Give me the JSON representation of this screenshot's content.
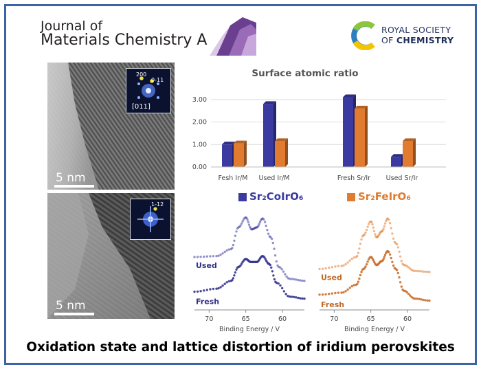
{
  "journal": {
    "line1": "Journal of",
    "line2": "Materials Chemistry A"
  },
  "publisher": {
    "line1": "ROYAL SOCIETY",
    "line2_prefix": "OF ",
    "line2_strong": "CHEMISTRY"
  },
  "tem_panels": [
    {
      "scale_label": "5 nm",
      "fft_labels": [
        "200",
        "0-11",
        "[011]"
      ]
    },
    {
      "scale_label": "5 nm",
      "fft_labels": [
        "1-12"
      ]
    }
  ],
  "legend": [
    {
      "label": "Sr₂CoIrO₆",
      "color": "#3a3aa0"
    },
    {
      "label": "Sr₂FeIrO₆",
      "color": "#e07b30"
    }
  ],
  "chart_data": [
    {
      "type": "bar",
      "title": "Surface atomic ratio",
      "categories": [
        "Fesh Ir/M",
        "Used Ir/M",
        "Fresh Sr/Ir",
        "Used Sr/Ir"
      ],
      "series": [
        {
          "name": "Sr₂CoIrO₆",
          "values": [
            1.0,
            2.8,
            3.1,
            0.45
          ]
        },
        {
          "name": "Sr₂FeIrO₆",
          "values": [
            1.05,
            1.15,
            2.6,
            1.15
          ]
        }
      ],
      "yticks": [
        "0.00",
        "1.00",
        "2.00",
        "3.00"
      ],
      "ylim": [
        0,
        3.3
      ]
    },
    {
      "type": "line",
      "series_name": "Sr₂CoIrO₆",
      "color": "#3a3aa0",
      "xlabel": "Binding Energy / V",
      "xticks": [
        70,
        65,
        60
      ],
      "xlim": [
        72,
        57
      ],
      "ylim": [
        0,
        1
      ],
      "curves": [
        {
          "label": "Used",
          "points": [
            [
              72,
              0.52
            ],
            [
              69,
              0.53
            ],
            [
              67,
              0.6
            ],
            [
              66,
              0.82
            ],
            [
              65,
              0.92
            ],
            [
              64.2,
              0.8
            ],
            [
              63.5,
              0.82
            ],
            [
              62.7,
              0.91
            ],
            [
              61.6,
              0.72
            ],
            [
              60.5,
              0.42
            ],
            [
              59,
              0.3
            ],
            [
              57,
              0.28
            ]
          ]
        },
        {
          "label": "Fresh",
          "points": [
            [
              72,
              0.17
            ],
            [
              69,
              0.2
            ],
            [
              67,
              0.28
            ],
            [
              66,
              0.42
            ],
            [
              65,
              0.5
            ],
            [
              64.3,
              0.47
            ],
            [
              63.5,
              0.47
            ],
            [
              62.7,
              0.53
            ],
            [
              61.8,
              0.45
            ],
            [
              60.8,
              0.26
            ],
            [
              59,
              0.12
            ],
            [
              57,
              0.1
            ]
          ]
        }
      ]
    },
    {
      "type": "line",
      "series_name": "Sr₂FeIrO₆",
      "color": "#e07b30",
      "xlabel": "Binding Energy / V",
      "xticks": [
        70,
        65,
        60
      ],
      "xlim": [
        72,
        57
      ],
      "ylim": [
        0,
        1
      ],
      "curves": [
        {
          "label": "Used",
          "points": [
            [
              72,
              0.4
            ],
            [
              69,
              0.43
            ],
            [
              67,
              0.52
            ],
            [
              66,
              0.74
            ],
            [
              65,
              0.88
            ],
            [
              64.2,
              0.72
            ],
            [
              63.5,
              0.78
            ],
            [
              62.7,
              0.91
            ],
            [
              61.6,
              0.66
            ],
            [
              60.5,
              0.44
            ],
            [
              59,
              0.38
            ],
            [
              57,
              0.37
            ]
          ]
        },
        {
          "label": "Fresh",
          "points": [
            [
              72,
              0.14
            ],
            [
              69,
              0.16
            ],
            [
              67,
              0.24
            ],
            [
              66,
              0.4
            ],
            [
              65,
              0.52
            ],
            [
              64.2,
              0.44
            ],
            [
              63.5,
              0.48
            ],
            [
              62.7,
              0.58
            ],
            [
              61.6,
              0.4
            ],
            [
              60.5,
              0.18
            ],
            [
              59,
              0.1
            ],
            [
              57,
              0.08
            ]
          ]
        }
      ]
    }
  ],
  "caption": "Oxidation state and lattice distortion of iridium perovskites"
}
